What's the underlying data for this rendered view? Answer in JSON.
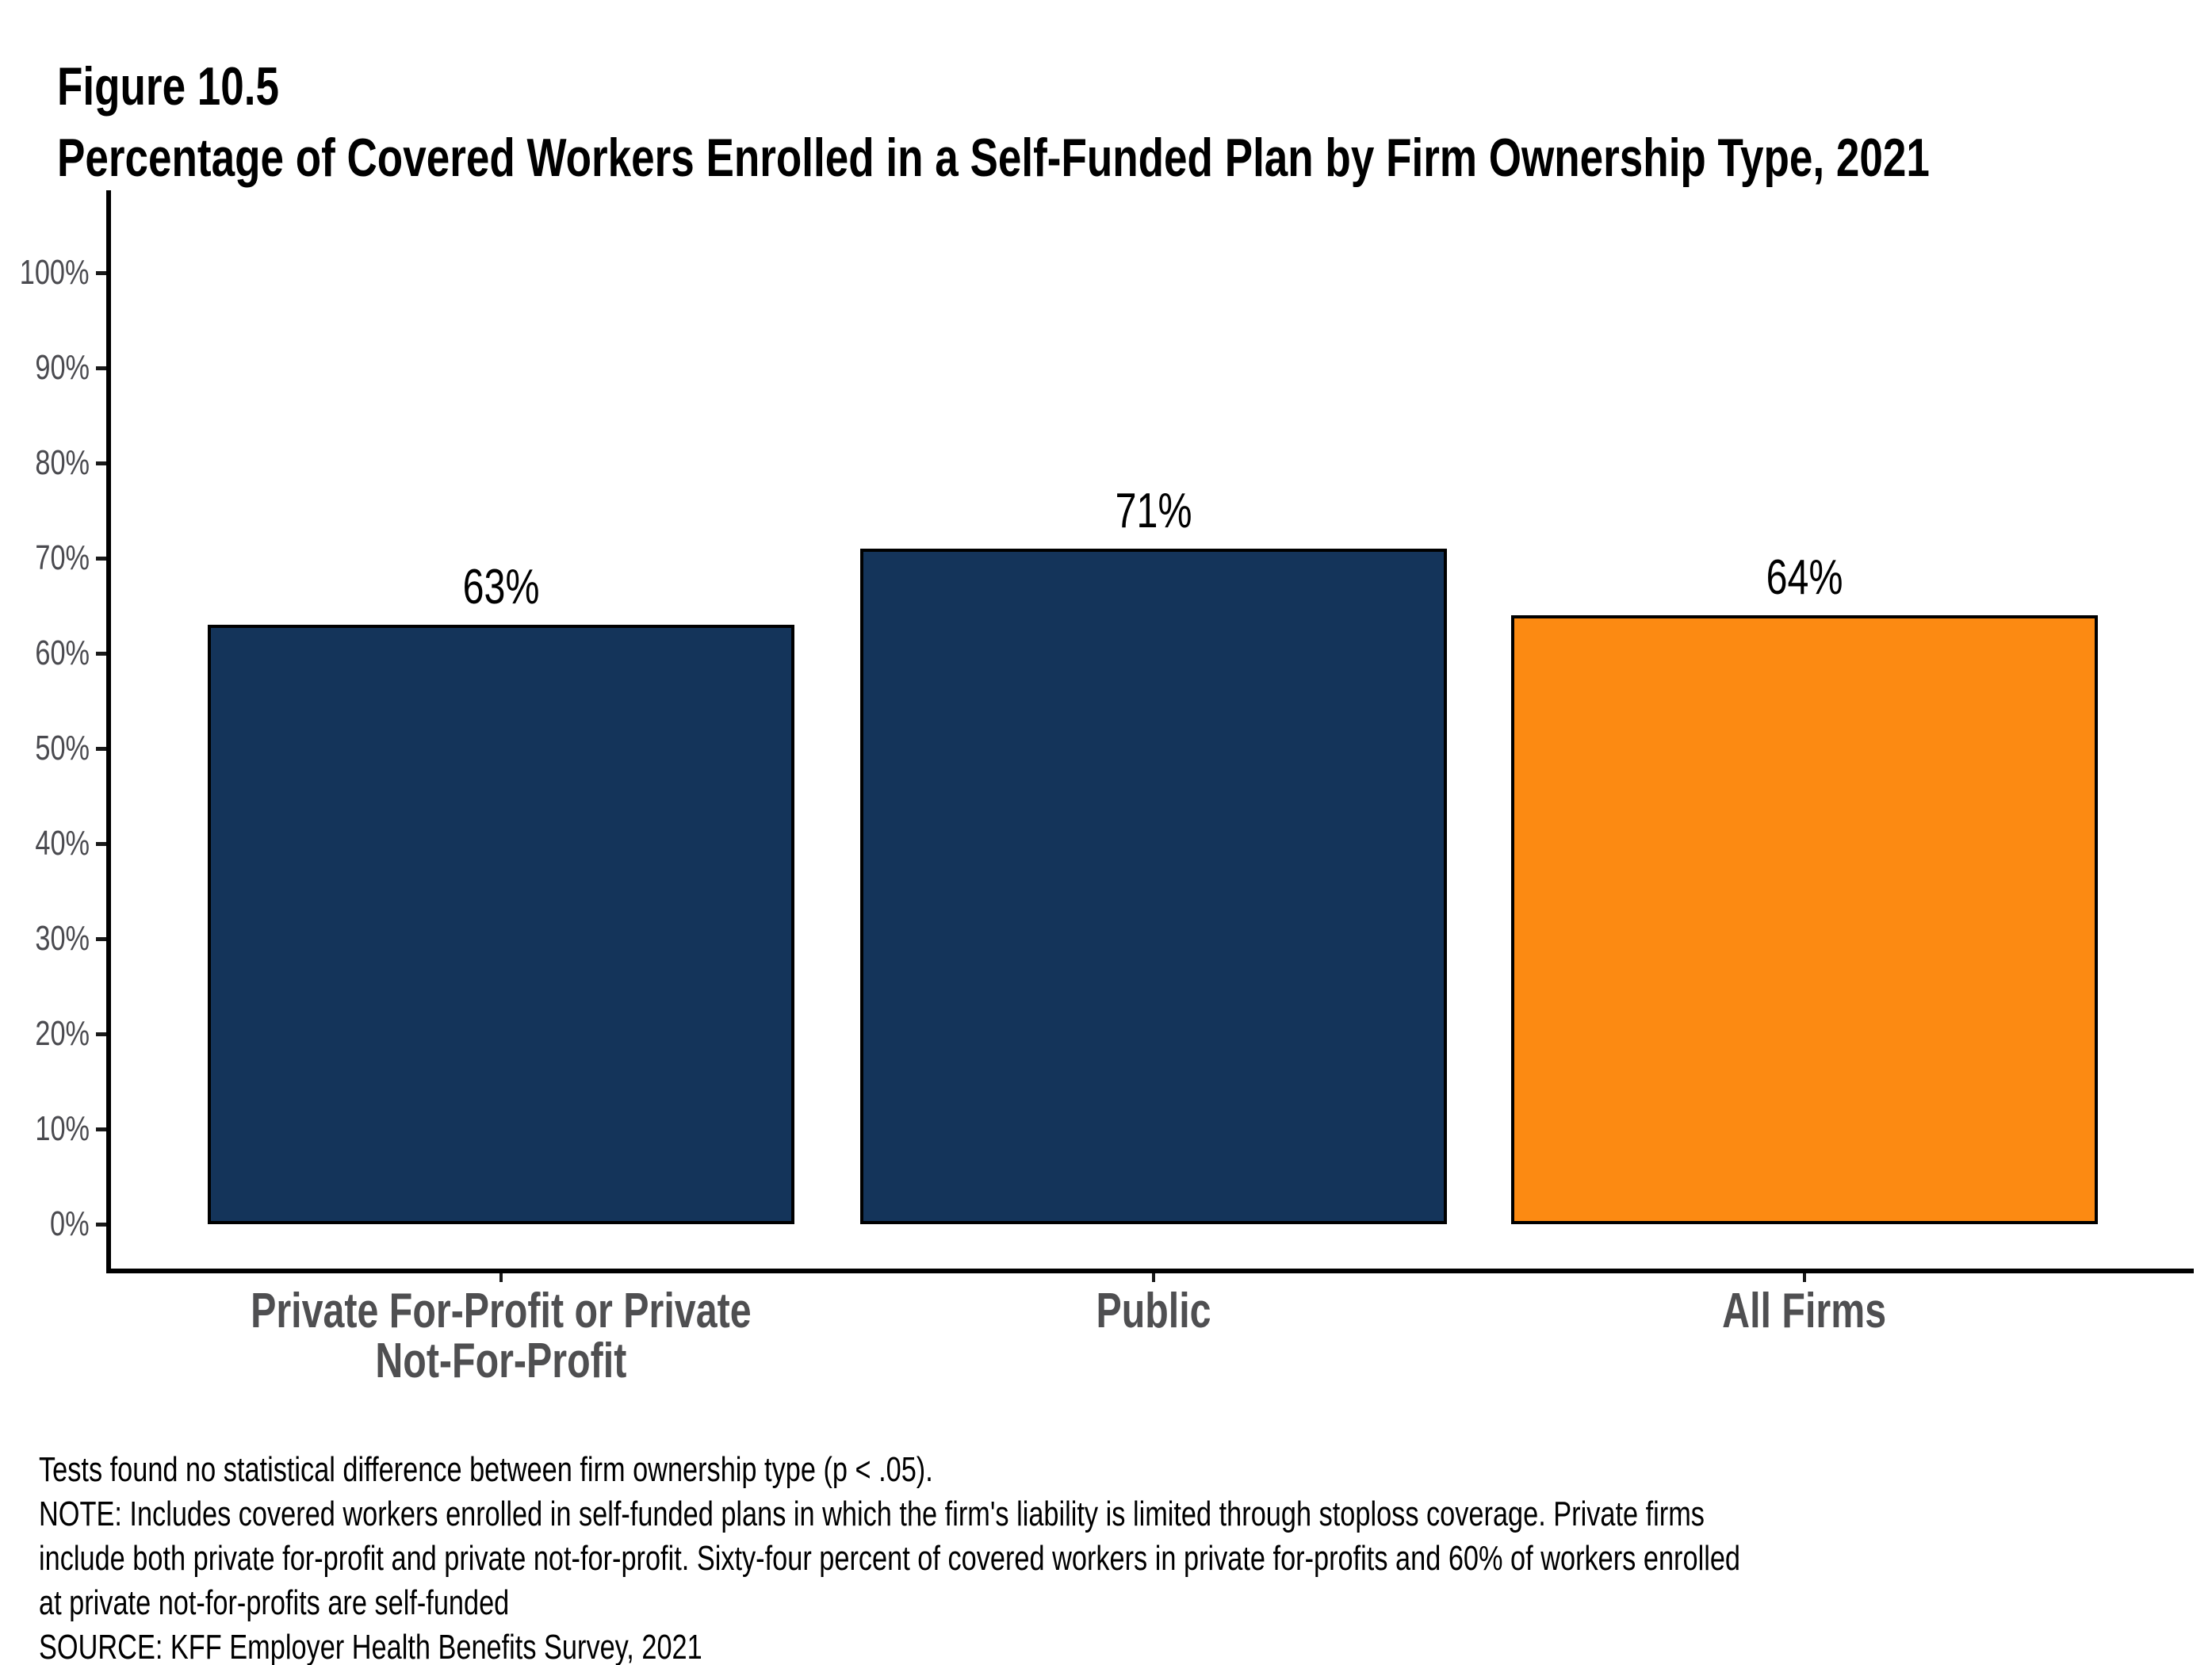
{
  "figure_label": "Figure 10.5",
  "title": "Percentage of Covered Workers Enrolled in a Self-Funded Plan by Firm Ownership Type, 2021",
  "chart_data": {
    "type": "bar",
    "title": "Percentage of Covered Workers Enrolled in a Self-Funded Plan by Firm Ownership Type, 2021",
    "categories": [
      "Private For-Profit or Private\nNot-For-Profit",
      "Public",
      "All Firms"
    ],
    "values": [
      63,
      71,
      64
    ],
    "value_labels": [
      "63%",
      "71%",
      "64%"
    ],
    "bar_colors": [
      "#14345A",
      "#14345A",
      "#FC8A12"
    ],
    "xlabel": "",
    "ylabel": "",
    "ylim": [
      0,
      100
    ],
    "yticks": [
      0,
      10,
      20,
      30,
      40,
      50,
      60,
      70,
      80,
      90,
      100
    ],
    "ytick_labels": [
      "0%",
      "10%",
      "20%",
      "30%",
      "40%",
      "50%",
      "60%",
      "70%",
      "80%",
      "90%",
      "100%"
    ],
    "grid": false,
    "legend_position": "none"
  },
  "colors": {
    "navy": "#14345A",
    "orange": "#FC8A12",
    "axis": "#000000",
    "tick_label": "#4A4A4F",
    "category_label": "#4F4F51"
  },
  "notes": [
    "Tests found no statistical difference between firm ownership type (p < .05).",
    "NOTE: Includes covered workers enrolled in self-funded plans in which the firm's liability is limited through stoploss coverage.  Private firms",
    "include both private for-profit and private not-for-profit. Sixty-four percent of covered workers in private for-profits and 60% of workers enrolled",
    "at private not-for-profits are self-funded",
    "SOURCE: KFF Employer Health Benefits Survey, 2021"
  ]
}
